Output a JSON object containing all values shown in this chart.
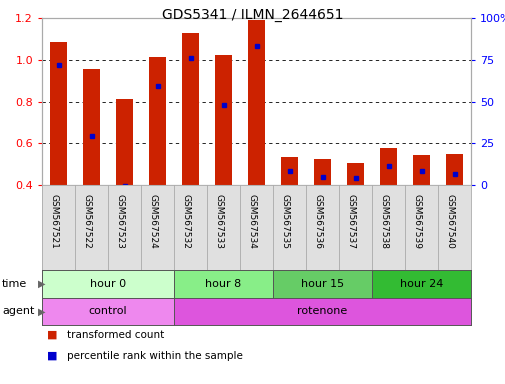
{
  "title": "GDS5341 / ILMN_2644651",
  "samples": [
    "GSM567521",
    "GSM567522",
    "GSM567523",
    "GSM567524",
    "GSM567532",
    "GSM567533",
    "GSM567534",
    "GSM567535",
    "GSM567536",
    "GSM567537",
    "GSM567538",
    "GSM567539",
    "GSM567540"
  ],
  "transformed_count": [
    1.085,
    0.955,
    0.81,
    1.015,
    1.13,
    1.025,
    1.19,
    0.535,
    0.525,
    0.505,
    0.575,
    0.545,
    0.55
  ],
  "percentile_rank": [
    0.975,
    0.635,
    0.395,
    0.875,
    1.01,
    0.785,
    1.065,
    0.465,
    0.44,
    0.435,
    0.49,
    0.465,
    0.455
  ],
  "ylim_left": [
    0.4,
    1.2
  ],
  "ylim_right": [
    0,
    100
  ],
  "yticks_left": [
    0.4,
    0.6,
    0.8,
    1.0,
    1.2
  ],
  "yticks_right": [
    0,
    25,
    50,
    75,
    100
  ],
  "bar_color": "#cc2200",
  "dot_color": "#0000cc",
  "base": 0.4,
  "time_groups": [
    {
      "label": "hour 0",
      "start": 0,
      "end": 4,
      "color": "#ccffcc"
    },
    {
      "label": "hour 8",
      "start": 4,
      "end": 7,
      "color": "#88ee88"
    },
    {
      "label": "hour 15",
      "start": 7,
      "end": 10,
      "color": "#66cc66"
    },
    {
      "label": "hour 24",
      "start": 10,
      "end": 13,
      "color": "#33bb33"
    }
  ],
  "agent_groups": [
    {
      "label": "control",
      "start": 0,
      "end": 4,
      "color": "#ee88ee"
    },
    {
      "label": "rotenone",
      "start": 4,
      "end": 13,
      "color": "#dd55dd"
    }
  ],
  "legend_items": [
    {
      "label": "transformed count",
      "color": "#cc2200"
    },
    {
      "label": "percentile rank within the sample",
      "color": "#0000cc"
    }
  ],
  "bar_width": 0.5,
  "xlabel_fontsize": 6.5,
  "title_fontsize": 10
}
